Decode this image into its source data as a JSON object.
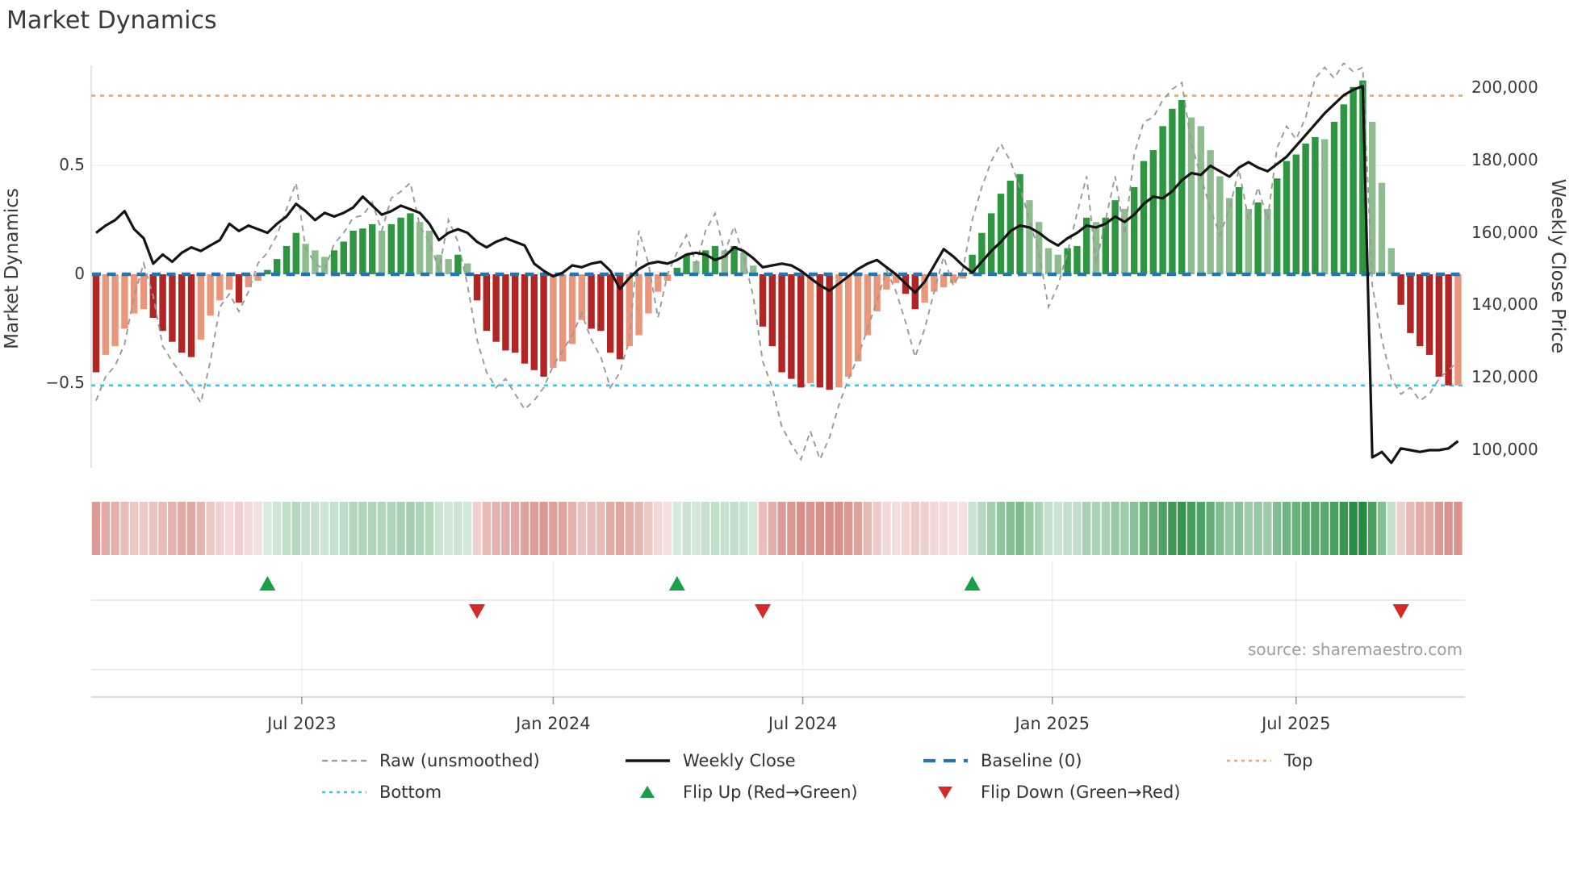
{
  "title": "Market Dynamics",
  "source": "source: sharemaestro.com",
  "left_axis": {
    "label": "Market Dynamics",
    "ticks": [
      {
        "v": 0.5,
        "label": "0.5"
      },
      {
        "v": 0,
        "label": "0"
      },
      {
        "v": -0.5,
        "label": "−0.5"
      }
    ]
  },
  "right_axis": {
    "label": "Weekly Close Price",
    "ticks": [
      {
        "v": 200000,
        "label": "200,000"
      },
      {
        "v": 180000,
        "label": "180,000"
      },
      {
        "v": 160000,
        "label": "160,000"
      },
      {
        "v": 140000,
        "label": "140,000"
      },
      {
        "v": 120000,
        "label": "120,000"
      },
      {
        "v": 100000,
        "label": "100,000"
      }
    ]
  },
  "x_axis": {
    "ticks": [
      {
        "week": 21.6,
        "label": "Jul 2023"
      },
      {
        "week": 48.0,
        "label": "Jan 2024"
      },
      {
        "week": 74.2,
        "label": "Jul 2024"
      },
      {
        "week": 100.4,
        "label": "Jan 2025"
      },
      {
        "week": 126.0,
        "label": "Jul 2025"
      }
    ]
  },
  "legend": {
    "rows": [
      [
        {
          "id": "raw",
          "swatch": "dash-gray",
          "label": "Raw (unsmoothed)"
        },
        {
          "id": "weekly-close",
          "swatch": "solid-black",
          "label": "Weekly Close"
        },
        {
          "id": "baseline",
          "swatch": "dash-blue",
          "label": "Baseline (0)"
        },
        {
          "id": "top",
          "swatch": "dot-orange",
          "label": "Top"
        }
      ],
      [
        {
          "id": "bottom",
          "swatch": "dot-cyan",
          "label": "Bottom"
        },
        {
          "id": "flip-up",
          "swatch": "tri-up",
          "label": "Flip Up (Red→Green)"
        },
        {
          "id": "flip-down",
          "swatch": "tri-down",
          "label": "Flip Down (Green→Red)"
        }
      ]
    ]
  },
  "colors": {
    "dark_red": "#B22525",
    "light_red": "#E9967A",
    "dark_green": "#2E9640",
    "light_green": "#8FBC8F",
    "baseline": "#1F77B4",
    "top": "#F4A460",
    "bottom": "#3FC8DE",
    "raw": "#999999",
    "price": "#141414",
    "flip_up": "#18A048",
    "flip_down": "#D42A2A",
    "grid": "#ECECEC",
    "spine": "#D9D9D9",
    "panel_line": "#E3E3E3",
    "axis_line": "#CFCFCF",
    "tick_mark": "#9A9A9A",
    "strip_red": "#C4524A",
    "strip_green": "#208A3C"
  },
  "chart_data": {
    "type": "bar",
    "subtype": "oscillator+price combo, weekly",
    "title": "Market Dynamics",
    "ylabel_left": "Market Dynamics",
    "ylabel_right": "Weekly Close Price",
    "ylim_left": [
      -0.89,
      0.96
    ],
    "ylim_right": [
      97000,
      206000
    ],
    "baseline": 0,
    "top_threshold": 0.82,
    "bottom_threshold": -0.51,
    "grid_values_left": [
      0.5,
      -0.5
    ],
    "legend_position": "bottom-center",
    "flip_up_weeks": [
      18,
      61,
      92
    ],
    "flip_down_weeks": [
      40,
      70,
      137
    ],
    "oscillator": [
      [
        -0.45,
        "d"
      ],
      [
        -0.37,
        "l"
      ],
      [
        -0.33,
        "l"
      ],
      [
        -0.25,
        "l"
      ],
      [
        -0.18,
        "l"
      ],
      [
        -0.16,
        "l"
      ],
      [
        -0.2,
        "d"
      ],
      [
        -0.26,
        "d"
      ],
      [
        -0.31,
        "d"
      ],
      [
        -0.36,
        "d"
      ],
      [
        -0.38,
        "d"
      ],
      [
        -0.3,
        "l"
      ],
      [
        -0.19,
        "l"
      ],
      [
        -0.12,
        "l"
      ],
      [
        -0.07,
        "l"
      ],
      [
        -0.13,
        "d"
      ],
      [
        -0.06,
        "l"
      ],
      [
        -0.03,
        "l"
      ],
      [
        0.02,
        "d"
      ],
      [
        0.07,
        "d"
      ],
      [
        0.13,
        "d"
      ],
      [
        0.19,
        "d"
      ],
      [
        0.14,
        "l"
      ],
      [
        0.11,
        "l"
      ],
      [
        0.08,
        "l"
      ],
      [
        0.11,
        "d"
      ],
      [
        0.15,
        "d"
      ],
      [
        0.2,
        "d"
      ],
      [
        0.21,
        "d"
      ],
      [
        0.23,
        "d"
      ],
      [
        0.2,
        "l"
      ],
      [
        0.23,
        "d"
      ],
      [
        0.26,
        "d"
      ],
      [
        0.28,
        "d"
      ],
      [
        0.24,
        "l"
      ],
      [
        0.2,
        "l"
      ],
      [
        0.09,
        "l"
      ],
      [
        0.07,
        "l"
      ],
      [
        0.09,
        "d"
      ],
      [
        0.05,
        "l"
      ],
      [
        -0.12,
        "d"
      ],
      [
        -0.26,
        "d"
      ],
      [
        -0.31,
        "d"
      ],
      [
        -0.35,
        "d"
      ],
      [
        -0.36,
        "d"
      ],
      [
        -0.41,
        "d"
      ],
      [
        -0.44,
        "d"
      ],
      [
        -0.47,
        "d"
      ],
      [
        -0.43,
        "l"
      ],
      [
        -0.4,
        "l"
      ],
      [
        -0.32,
        "l"
      ],
      [
        -0.21,
        "l"
      ],
      [
        -0.25,
        "d"
      ],
      [
        -0.26,
        "d"
      ],
      [
        -0.36,
        "d"
      ],
      [
        -0.39,
        "d"
      ],
      [
        -0.33,
        "l"
      ],
      [
        -0.28,
        "l"
      ],
      [
        -0.18,
        "l"
      ],
      [
        -0.08,
        "l"
      ],
      [
        -0.03,
        "l"
      ],
      [
        0.03,
        "d"
      ],
      [
        0.09,
        "d"
      ],
      [
        0.06,
        "l"
      ],
      [
        0.11,
        "d"
      ],
      [
        0.13,
        "d"
      ],
      [
        0.11,
        "l"
      ],
      [
        0.13,
        "d"
      ],
      [
        0.1,
        "l"
      ],
      [
        0.04,
        "l"
      ],
      [
        -0.24,
        "d"
      ],
      [
        -0.33,
        "d"
      ],
      [
        -0.45,
        "d"
      ],
      [
        -0.48,
        "d"
      ],
      [
        -0.52,
        "d"
      ],
      [
        -0.5,
        "l"
      ],
      [
        -0.52,
        "d"
      ],
      [
        -0.53,
        "d"
      ],
      [
        -0.52,
        "l"
      ],
      [
        -0.47,
        "l"
      ],
      [
        -0.4,
        "l"
      ],
      [
        -0.28,
        "l"
      ],
      [
        -0.17,
        "l"
      ],
      [
        -0.07,
        "l"
      ],
      [
        -0.04,
        "l"
      ],
      [
        -0.09,
        "d"
      ],
      [
        -0.16,
        "d"
      ],
      [
        -0.13,
        "l"
      ],
      [
        -0.08,
        "l"
      ],
      [
        -0.06,
        "l"
      ],
      [
        -0.04,
        "l"
      ],
      [
        -0.02,
        "l"
      ],
      [
        0.09,
        "d"
      ],
      [
        0.19,
        "d"
      ],
      [
        0.28,
        "d"
      ],
      [
        0.37,
        "d"
      ],
      [
        0.43,
        "d"
      ],
      [
        0.46,
        "d"
      ],
      [
        0.34,
        "l"
      ],
      [
        0.24,
        "l"
      ],
      [
        0.12,
        "l"
      ],
      [
        0.09,
        "l"
      ],
      [
        0.12,
        "d"
      ],
      [
        0.13,
        "d"
      ],
      [
        0.26,
        "d"
      ],
      [
        0.24,
        "l"
      ],
      [
        0.26,
        "d"
      ],
      [
        0.34,
        "d"
      ],
      [
        0.3,
        "l"
      ],
      [
        0.4,
        "d"
      ],
      [
        0.52,
        "d"
      ],
      [
        0.57,
        "d"
      ],
      [
        0.68,
        "d"
      ],
      [
        0.76,
        "d"
      ],
      [
        0.8,
        "d"
      ],
      [
        0.72,
        "l"
      ],
      [
        0.68,
        "l"
      ],
      [
        0.57,
        "l"
      ],
      [
        0.45,
        "l"
      ],
      [
        0.35,
        "l"
      ],
      [
        0.4,
        "d"
      ],
      [
        0.3,
        "l"
      ],
      [
        0.33,
        "d"
      ],
      [
        0.3,
        "l"
      ],
      [
        0.44,
        "d"
      ],
      [
        0.52,
        "d"
      ],
      [
        0.55,
        "d"
      ],
      [
        0.6,
        "d"
      ],
      [
        0.63,
        "d"
      ],
      [
        0.62,
        "l"
      ],
      [
        0.7,
        "d"
      ],
      [
        0.78,
        "d"
      ],
      [
        0.86,
        "d"
      ],
      [
        0.89,
        "d"
      ],
      [
        0.7,
        "l"
      ],
      [
        0.42,
        "l"
      ],
      [
        0.12,
        "l"
      ],
      [
        -0.14,
        "d"
      ],
      [
        -0.27,
        "d"
      ],
      [
        -0.33,
        "d"
      ],
      [
        -0.37,
        "d"
      ],
      [
        -0.47,
        "d"
      ],
      [
        -0.51,
        "d"
      ],
      [
        -0.51,
        "l"
      ]
    ],
    "raw": [
      -0.58,
      -0.47,
      -0.42,
      -0.32,
      -0.1,
      0.05,
      -0.1,
      -0.33,
      -0.4,
      -0.46,
      -0.52,
      -0.59,
      -0.4,
      -0.15,
      -0.09,
      -0.17,
      -0.08,
      0.05,
      0.1,
      0.18,
      0.3,
      0.42,
      0.12,
      0.05,
      0.02,
      0.14,
      0.19,
      0.26,
      0.27,
      0.33,
      0.2,
      0.35,
      0.38,
      0.42,
      0.22,
      0.15,
      0.02,
      0.25,
      0.15,
      -0.05,
      -0.3,
      -0.45,
      -0.52,
      -0.48,
      -0.55,
      -0.62,
      -0.58,
      -0.52,
      -0.42,
      -0.35,
      -0.28,
      -0.18,
      -0.3,
      -0.38,
      -0.52,
      -0.45,
      -0.3,
      0.2,
      0.05,
      -0.2,
      0.0,
      0.1,
      0.18,
      0.05,
      0.2,
      0.28,
      0.1,
      0.22,
      0.08,
      -0.1,
      -0.4,
      -0.52,
      -0.7,
      -0.78,
      -0.85,
      -0.72,
      -0.85,
      -0.75,
      -0.6,
      -0.48,
      -0.38,
      -0.25,
      -0.12,
      0.02,
      -0.08,
      -0.22,
      -0.38,
      -0.25,
      -0.08,
      0.08,
      -0.05,
      0.02,
      0.25,
      0.4,
      0.52,
      0.6,
      0.52,
      0.4,
      0.25,
      0.1,
      -0.15,
      -0.05,
      0.1,
      0.28,
      0.45,
      0.05,
      0.25,
      0.45,
      0.18,
      0.55,
      0.7,
      0.72,
      0.8,
      0.85,
      0.88,
      0.6,
      0.45,
      0.3,
      0.18,
      0.3,
      0.48,
      0.25,
      0.4,
      0.25,
      0.58,
      0.68,
      0.62,
      0.72,
      0.9,
      0.95,
      0.9,
      0.97,
      0.93,
      0.95,
      -0.05,
      -0.3,
      -0.48,
      -0.55,
      -0.52,
      -0.58,
      -0.55,
      -0.48,
      -0.44,
      -0.4
    ],
    "weekly_close": [
      160000,
      162000,
      163500,
      166000,
      161000,
      158500,
      151500,
      154000,
      152000,
      154500,
      156000,
      155000,
      156500,
      158000,
      162500,
      160500,
      162000,
      161000,
      160000,
      162500,
      164500,
      168000,
      166000,
      163500,
      165500,
      164500,
      165500,
      167000,
      170000,
      167500,
      165000,
      166000,
      167500,
      166500,
      165500,
      162500,
      158000,
      160000,
      161000,
      160000,
      157500,
      156000,
      157500,
      158500,
      157500,
      156500,
      151500,
      149500,
      148000,
      149000,
      151000,
      150500,
      151500,
      152000,
      149500,
      144500,
      147500,
      150000,
      151500,
      152000,
      151500,
      152500,
      154000,
      154500,
      154000,
      152500,
      153500,
      156000,
      155000,
      153000,
      150500,
      151000,
      151500,
      151000,
      149500,
      147500,
      145500,
      144000,
      146000,
      148000,
      150000,
      151500,
      152500,
      150500,
      148500,
      146000,
      143500,
      146500,
      151000,
      155500,
      153500,
      151000,
      149000,
      152000,
      155000,
      157500,
      160500,
      162000,
      161500,
      160000,
      158000,
      156500,
      158500,
      160000,
      162000,
      161500,
      162500,
      164500,
      163000,
      165000,
      168000,
      170000,
      169500,
      171500,
      174500,
      176500,
      176000,
      178500,
      177000,
      175500,
      178000,
      179500,
      178000,
      177000,
      179000,
      181000,
      184000,
      187000,
      190000,
      193000,
      195500,
      198000,
      199500,
      200500,
      98000,
      99500,
      96500,
      100500,
      100000,
      99500,
      100000,
      100000,
      100500,
      102500
    ]
  }
}
